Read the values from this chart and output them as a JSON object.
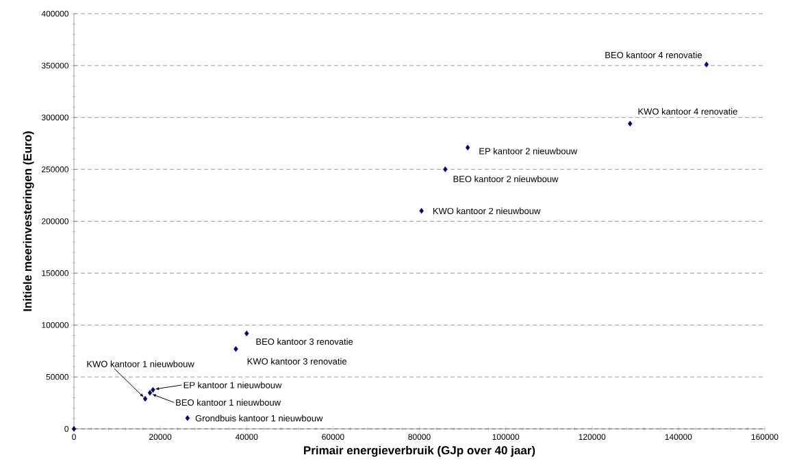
{
  "chart_data": {
    "type": "scatter",
    "xlabel": "Primair energieverbruik (GJp over 40 jaar)",
    "ylabel": "Initiele meerinvesteringen (Euro)",
    "series": [
      {
        "color": "#000080",
        "x": [
          0,
          16500,
          17600,
          18300,
          26300,
          37500,
          40000,
          80500,
          86000,
          91200,
          128800,
          146500
        ],
        "values": [
          0,
          29000,
          34700,
          37600,
          10300,
          77000,
          92000,
          210000,
          250000,
          271000,
          294000,
          351000
        ]
      }
    ],
    "annotations": [
      {
        "text": "KWO kantoor 1 nieuwbouw",
        "x": 16500,
        "y": 29000
      },
      {
        "text": "BEO kantoor 1 nieuwbouw",
        "x": 17600,
        "y": 34700
      },
      {
        "text": "EP kantoor 1 nieuwbouw",
        "x": 18300,
        "y": 37600
      },
      {
        "text": "Grondbuis kantoor 1 nieuwbouw",
        "x": 26300,
        "y": 10300
      },
      {
        "text": "KWO kantoor 3 renovatie",
        "x": 37500,
        "y": 77000
      },
      {
        "text": "BEO kantoor 3 renovatie",
        "x": 40000,
        "y": 92000
      },
      {
        "text": "KWO kantoor 2 nieuwbouw",
        "x": 80500,
        "y": 210000
      },
      {
        "text": "BEO kantoor 2 nieuwbouw",
        "x": 86000,
        "y": 250000
      },
      {
        "text": "EP kantoor 2 nieuwbouw",
        "x": 91200,
        "y": 271000
      },
      {
        "text": "KWO kantoor 4 renovatie",
        "x": 128800,
        "y": 294000
      },
      {
        "text": "BEO kantoor 4 renovatie",
        "x": 146500,
        "y": 351000
      }
    ],
    "xlim": [
      0,
      160000
    ],
    "ylim": [
      0,
      400000
    ],
    "xticks": [
      0,
      20000,
      40000,
      60000,
      80000,
      100000,
      120000,
      140000,
      160000
    ],
    "yticks": [
      0,
      50000,
      100000,
      150000,
      200000,
      250000,
      300000,
      350000,
      400000
    ],
    "grid": "y",
    "marker": "diamond"
  }
}
